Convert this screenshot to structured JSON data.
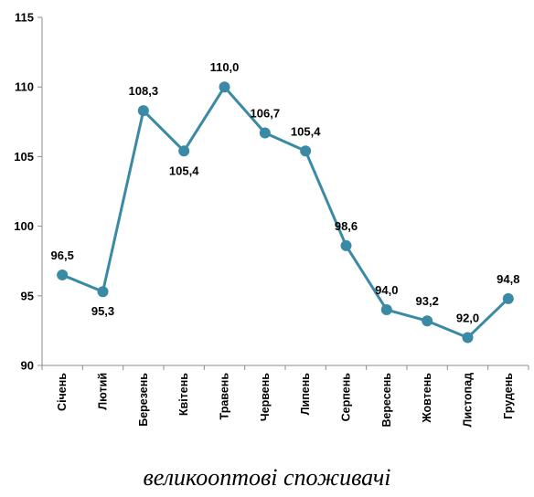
{
  "chart_data": {
    "type": "line",
    "categories": [
      "Січень",
      "Лютий",
      "Березень",
      "Квітень",
      "Травень",
      "Червень",
      "Липень",
      "Серпень",
      "Вересень",
      "Жовтень",
      "Листопад",
      "Грудень"
    ],
    "series": [
      {
        "values": [
          96.5,
          95.3,
          108.3,
          105.4,
          110.0,
          106.7,
          105.4,
          98.6,
          94.0,
          93.2,
          92.0,
          94.8
        ],
        "labels": [
          "96,5",
          "95,3",
          "108,3",
          "105,4",
          "110,0",
          "106,7",
          "105,4",
          "98,6",
          "94,0",
          "93,2",
          "92,0",
          "94,8"
        ]
      }
    ],
    "ylim": [
      90,
      115
    ],
    "yticks": [
      90,
      95,
      100,
      105,
      110,
      115
    ],
    "grid": false,
    "caption": "великооптові споживачі",
    "colors": {
      "line": "#3a8aa6",
      "marker": "#3a8aa6",
      "axis": "#8c8c8c"
    }
  }
}
